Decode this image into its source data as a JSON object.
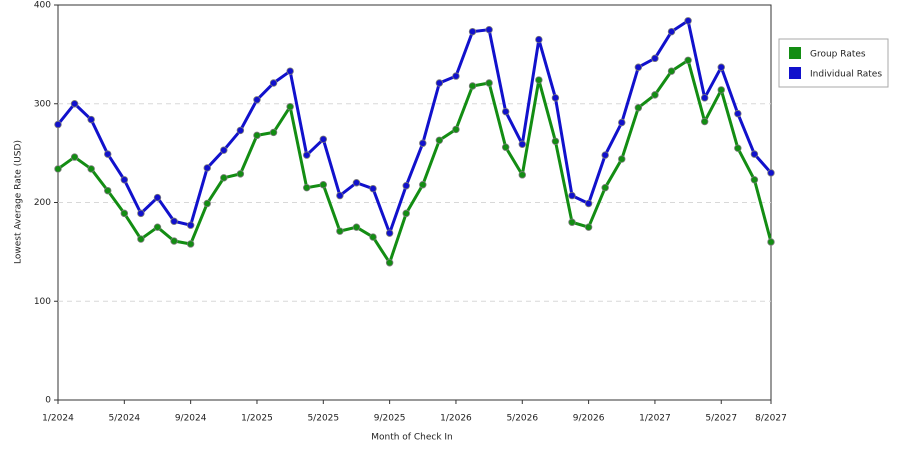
{
  "chart_data": {
    "type": "line",
    "x_label": "Month of Check In",
    "y_label": "Lowest Average Rate (USD)",
    "categories": [
      "1/2024",
      null,
      null,
      null,
      "5/2024",
      null,
      null,
      null,
      "9/2024",
      null,
      null,
      null,
      "1/2025",
      null,
      null,
      null,
      "5/2025",
      null,
      null,
      null,
      "9/2025",
      null,
      null,
      null,
      "1/2026",
      null,
      null,
      null,
      "5/2026",
      null,
      null,
      null,
      "9/2026",
      null,
      null,
      null,
      "1/2027",
      null,
      null,
      null,
      "5/2027",
      null,
      null,
      "8/2027"
    ],
    "series": [
      {
        "name": "Group Rates",
        "color": "#138d13",
        "values": [
          234,
          246,
          234,
          212,
          189,
          163,
          175,
          161,
          158,
          199,
          225,
          229,
          268,
          271,
          297,
          215,
          218,
          171,
          175,
          165,
          139,
          189,
          218,
          263,
          274,
          318,
          321,
          256,
          228,
          324,
          262,
          180,
          175,
          215,
          244,
          296,
          309,
          333,
          344,
          282,
          314,
          255,
          223,
          160
        ]
      },
      {
        "name": "Individual Rates",
        "color": "#1111cc",
        "values": [
          279,
          300,
          284,
          249,
          223,
          189,
          205,
          181,
          177,
          235,
          253,
          273,
          304,
          321,
          333,
          248,
          264,
          207,
          220,
          214,
          169,
          217,
          260,
          321,
          328,
          373,
          375,
          292,
          259,
          365,
          306,
          207,
          199,
          248,
          281,
          337,
          346,
          373,
          384,
          306,
          337,
          290,
          249,
          230
        ]
      }
    ],
    "ylim": [
      0,
      400
    ],
    "yticks": [
      0,
      100,
      200,
      300,
      400
    ],
    "grid": true,
    "legend": "right"
  }
}
